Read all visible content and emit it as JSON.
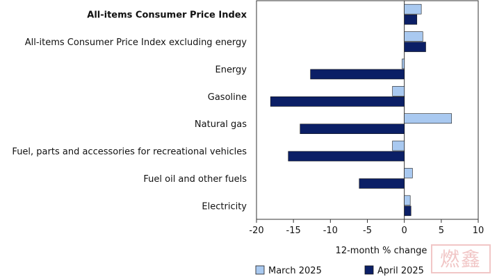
{
  "chart_data": {
    "type": "bar",
    "orientation": "horizontal",
    "categories": [
      "All-items Consumer Price Index",
      "All-items Consumer Price Index excluding energy",
      "Energy",
      "Gasoline",
      "Natural gas",
      "Fuel, parts and accessories for recreational vehicles",
      "Fuel oil and other fuels",
      "Electricity"
    ],
    "bold_categories": [
      "All-items Consumer Price Index"
    ],
    "series": [
      {
        "name": "March 2025",
        "color": "#a9c9f0",
        "values": [
          2.3,
          2.5,
          -0.3,
          -1.6,
          6.4,
          -1.6,
          1.1,
          0.8
        ]
      },
      {
        "name": "April 2025",
        "color": "#0b1f66",
        "values": [
          1.7,
          2.9,
          -12.7,
          -18.1,
          -14.1,
          -15.7,
          -6.1,
          0.9
        ]
      }
    ],
    "xlabel": "12-month % change",
    "xlim": [
      -20,
      10
    ],
    "xticks": [
      -20,
      -15,
      -10,
      -5,
      0,
      5,
      10
    ],
    "grid": false,
    "legend_position": "bottom"
  },
  "watermark": {
    "text": "燃鑫"
  }
}
